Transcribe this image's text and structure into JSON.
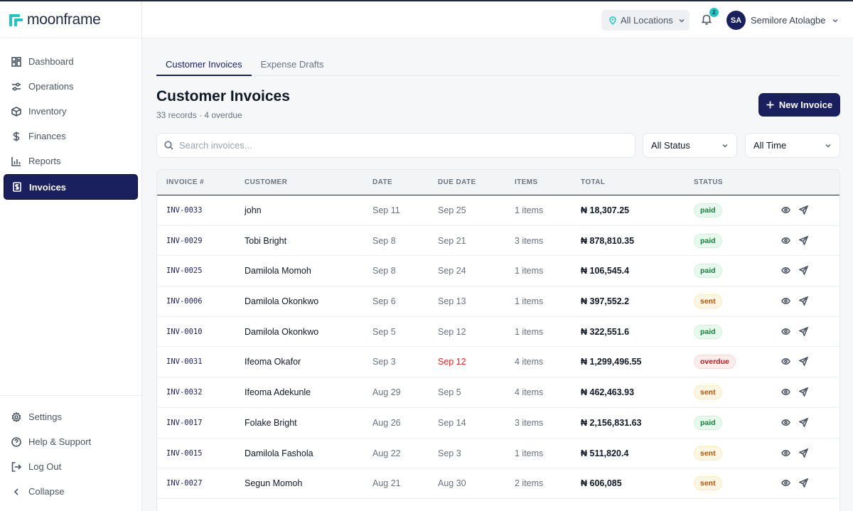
{
  "app": {
    "name": "moonframe",
    "accent": "#1a1f5e",
    "logo_color": "#22c3c3"
  },
  "sidebar": {
    "items": [
      {
        "label": "Dashboard",
        "icon": "grid-icon"
      },
      {
        "label": "Operations",
        "icon": "sliders-icon"
      },
      {
        "label": "Inventory",
        "icon": "box-icon"
      },
      {
        "label": "Finances",
        "icon": "dollar-icon"
      },
      {
        "label": "Reports",
        "icon": "bar-chart-icon"
      },
      {
        "label": "Invoices",
        "icon": "receipt-icon",
        "active": true
      }
    ],
    "bottom_items": [
      {
        "label": "Settings",
        "icon": "gear-icon"
      },
      {
        "label": "Help & Support",
        "icon": "help-icon"
      },
      {
        "label": "Log Out",
        "icon": "logout-icon"
      },
      {
        "label": "Collapse",
        "icon": "chevron-left-icon"
      }
    ]
  },
  "topbar": {
    "location": "All Locations",
    "notifications": "2",
    "user": {
      "initials": "SA",
      "name": "Semilore Atolagbe"
    }
  },
  "tabs": [
    {
      "label": "Customer Invoices",
      "active": true
    },
    {
      "label": "Expense Drafts",
      "active": false
    }
  ],
  "page": {
    "title": "Customer Invoices",
    "subtitle": "33 records · 4 overdue",
    "new_button": "New Invoice"
  },
  "filters": {
    "search_placeholder": "Search invoices...",
    "status": "All Status",
    "time": "All Time"
  },
  "table": {
    "headers": [
      "INVOICE #",
      "CUSTOMER",
      "DATE",
      "DUE DATE",
      "ITEMS",
      "TOTAL",
      "STATUS"
    ],
    "rows": [
      {
        "invoice": "INV-0033",
        "customer": "john",
        "date": "Sep 11",
        "due": "Sep 25",
        "items": "1 items",
        "total": "₦ 18,307.25",
        "status": "paid"
      },
      {
        "invoice": "INV-0029",
        "customer": "Tobi Bright",
        "date": "Sep 8",
        "due": "Sep 21",
        "items": "3 items",
        "total": "₦ 878,810.35",
        "status": "paid"
      },
      {
        "invoice": "INV-0025",
        "customer": "Damilola Momoh",
        "date": "Sep 8",
        "due": "Sep 24",
        "items": "1 items",
        "total": "₦ 106,545.4",
        "status": "paid"
      },
      {
        "invoice": "INV-0006",
        "customer": "Damilola Okonkwo",
        "date": "Sep 6",
        "due": "Sep 13",
        "items": "1 items",
        "total": "₦ 397,552.2",
        "status": "sent"
      },
      {
        "invoice": "INV-0010",
        "customer": "Damilola Okonkwo",
        "date": "Sep 5",
        "due": "Sep 12",
        "items": "1 items",
        "total": "₦ 322,551.6",
        "status": "paid"
      },
      {
        "invoice": "INV-0031",
        "customer": "Ifeoma Okafor",
        "date": "Sep 3",
        "due": "Sep 12",
        "items": "4 items",
        "total": "₦ 1,299,496.55",
        "status": "overdue"
      },
      {
        "invoice": "INV-0032",
        "customer": "Ifeoma Adekunle",
        "date": "Aug 29",
        "due": "Sep 5",
        "items": "4 items",
        "total": "₦ 462,463.93",
        "status": "sent"
      },
      {
        "invoice": "INV-0017",
        "customer": "Folake Bright",
        "date": "Aug 26",
        "due": "Sep 14",
        "items": "3 items",
        "total": "₦ 2,156,831.63",
        "status": "paid"
      },
      {
        "invoice": "INV-0015",
        "customer": "Damilola Fashola",
        "date": "Aug 22",
        "due": "Sep 3",
        "items": "1 items",
        "total": "₦ 511,820.4",
        "status": "sent"
      },
      {
        "invoice": "INV-0027",
        "customer": "Segun Momoh",
        "date": "Aug 21",
        "due": "Aug 30",
        "items": "2 items",
        "total": "₦ 606,085",
        "status": "sent"
      }
    ]
  }
}
